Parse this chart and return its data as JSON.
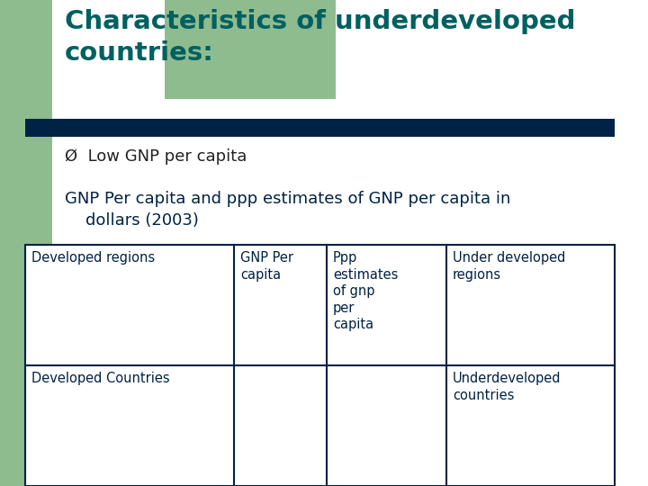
{
  "title": "Characteristics of underdeveloped\ncountries:",
  "title_color": "#006060",
  "title_fontsize": 21,
  "background_color": "#ffffff",
  "left_bar_color": "#8FBC8F",
  "divider_bar_color": "#002244",
  "bullet_symbol": "Ø",
  "bullet_text": "Low GNP per capita",
  "bullet_fontsize": 13,
  "subtitle_text": "GNP Per capita and ppp estimates of GNP per capita in\n    dollars (2003)",
  "subtitle_fontsize": 13,
  "subtitle_color": "#002244",
  "table_headers": [
    "Developed regions",
    "GNP Per\ncapita",
    "Ppp\nestimates\nof gnp\nper\ncapita",
    "Under developed\nregions"
  ],
  "table_row2": [
    "Developed Countries",
    "",
    "",
    "Underdeveloped\ncountries"
  ],
  "table_text_color": "#002244",
  "table_border_color": "#002244",
  "table_fontsize": 10.5,
  "fig_w": 7.2,
  "fig_h": 5.4,
  "dpi": 100
}
